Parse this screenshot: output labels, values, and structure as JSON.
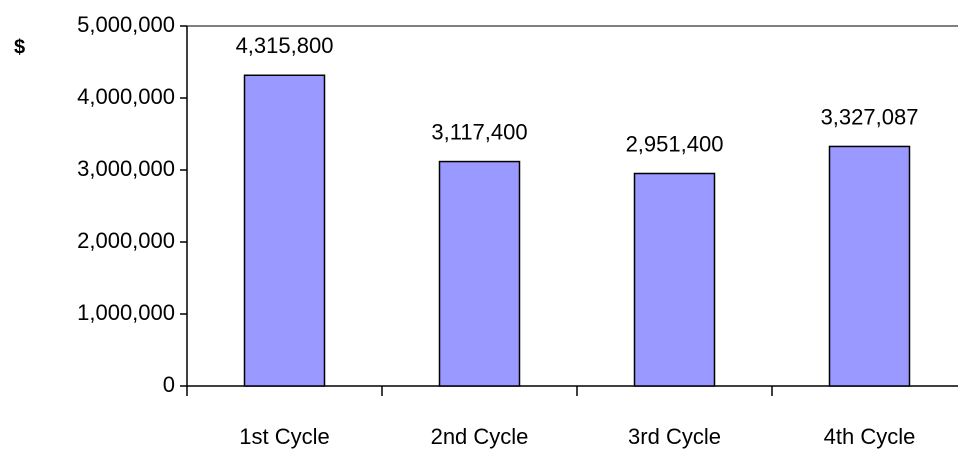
{
  "chart_data": {
    "type": "bar",
    "y_label": "$",
    "categories": [
      "1st Cycle",
      "2nd Cycle",
      "3rd Cycle",
      "4th Cycle"
    ],
    "values": [
      4315800,
      3117400,
      2951400,
      3327087
    ],
    "value_labels": [
      "4,315,800",
      "3,117,400",
      "2,951,400",
      "3,327,087"
    ],
    "color": "#9999ff",
    "ylim": [
      0,
      5000000
    ],
    "yticks": [
      0,
      {
        "value": 1000000,
        "label": "1,000,000"
      },
      {
        "value": 2000000,
        "label": "2,000,000"
      },
      {
        "value": 3000000,
        "label": "3,000,000"
      },
      {
        "value": 4000000,
        "label": "4,000,000"
      },
      {
        "value": 5000000,
        "label": "5,000,000"
      }
    ]
  }
}
